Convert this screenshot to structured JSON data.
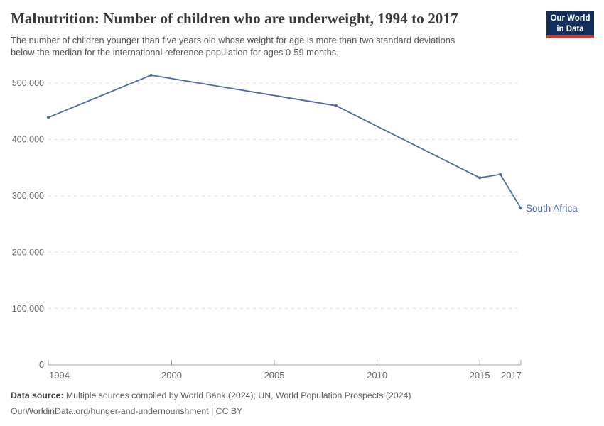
{
  "header": {
    "title": "Malnutrition: Number of children who are underweight, 1994 to 2017",
    "subtitle_lines": [
      "The number of children younger than five years old whose weight for age is more than two standard deviations",
      "below the median for the international reference population for ages 0-59 months."
    ],
    "logo": {
      "line1": "Our World",
      "line2": "in Data",
      "bg_color": "#12305b",
      "stripe_color": "#d7352a"
    }
  },
  "chart_data": {
    "type": "line",
    "title": "Malnutrition: Number of children who are underweight, 1994 to 2017",
    "series": [
      {
        "name": "South Africa",
        "color": "#4b69a5",
        "x": [
          1994,
          1999,
          2008,
          2015,
          2016,
          2017
        ],
        "values": [
          439000,
          514000,
          460000,
          332000,
          338000,
          278000
        ]
      }
    ],
    "end_label": "South Africa",
    "x_ticks": [
      1994,
      2000,
      2005,
      2010,
      2015,
      2017
    ],
    "y_ticks": [
      0,
      100000,
      200000,
      300000,
      400000,
      500000
    ],
    "xlim": [
      1994,
      2017
    ],
    "ylim": [
      0,
      500000
    ],
    "grid": "horizontal-dashed",
    "legend_position": "end-of-line"
  },
  "footer": {
    "datasource_label": "Data source:",
    "datasource_text": " Multiple sources compiled by World Bank (2024); UN, World Population Prospects (2024)",
    "url_line": "OurWorldinData.org/hunger-and-undernourishment | CC BY"
  }
}
